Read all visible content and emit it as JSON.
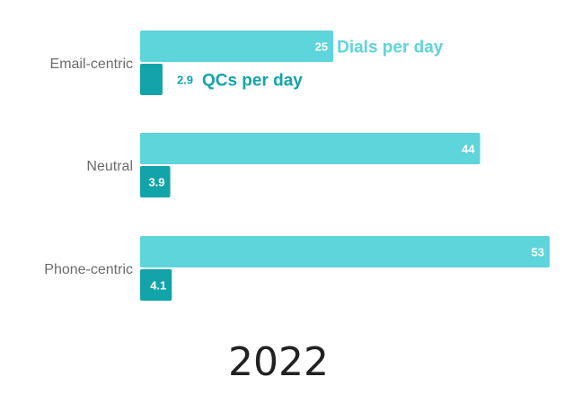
{
  "chart_data": {
    "type": "bar",
    "orientation": "horizontal",
    "title": "2022",
    "categories": [
      "Email-centric",
      "Neutral",
      "Phone-centric"
    ],
    "series": [
      {
        "name": "Dials per day",
        "values": [
          25,
          44,
          53
        ],
        "color": "#5ed4db"
      },
      {
        "name": "QCs per day",
        "values": [
          2.9,
          3.9,
          4.1
        ],
        "color": "#12a4a9"
      }
    ],
    "value_labels": {
      "Dials per day": [
        "25",
        "44",
        "53"
      ],
      "QCs per day": [
        "2.9",
        "3.9",
        "4.1"
      ]
    },
    "xlim": [
      0,
      53
    ],
    "grid": false,
    "legend": "inline next to first category bars"
  }
}
